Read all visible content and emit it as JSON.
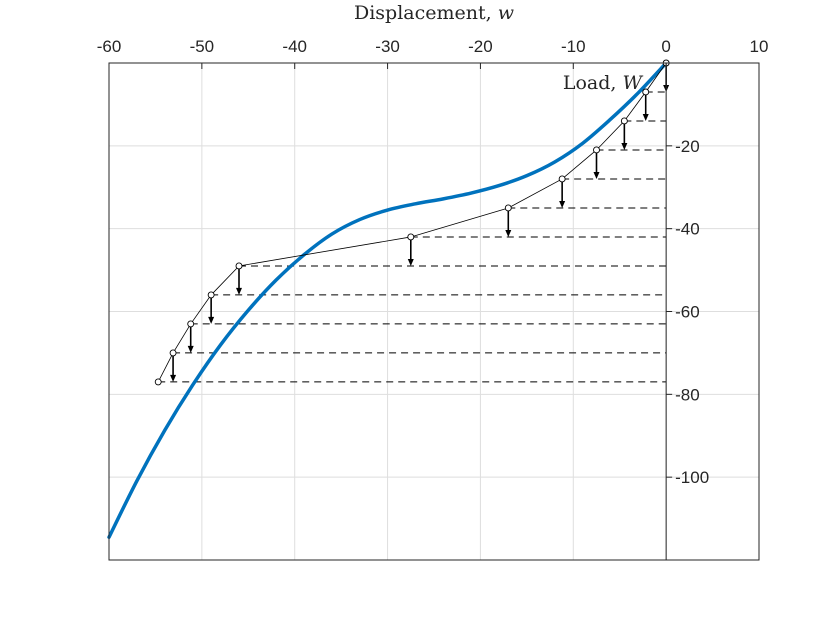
{
  "chart_data": {
    "type": "line",
    "title": "",
    "xlabel": "Displacement,",
    "xlabel_var": "w",
    "ylabel": "Load,",
    "ylabel_var": "W",
    "xlim": [
      -60,
      10
    ],
    "ylim": [
      -120,
      0
    ],
    "xticks": [
      -60,
      -50,
      -40,
      -30,
      -20,
      -10,
      0,
      10
    ],
    "yticks": [
      -20,
      -40,
      -60,
      -80,
      -100
    ],
    "xtick_labels": [
      "-60",
      "-50",
      "-40",
      "-30",
      "-20",
      "-10",
      "0",
      "10"
    ],
    "ytick_labels": [
      "-20",
      "-40",
      "-60",
      "-80",
      "-100"
    ],
    "x_axis_position": "top",
    "y_axis_position": "at x = 0",
    "grid": true,
    "legend": "none",
    "colors": {
      "curve": "#0072BD",
      "iteration": "#000000",
      "grid": "#dedede",
      "axes": "#262626"
    },
    "series": [
      {
        "style": "thick smooth line",
        "x": [
          -60,
          -57,
          -54,
          -51,
          -48,
          -45,
          -42,
          -39,
          -36,
          -33,
          -30,
          -27,
          -24,
          -21,
          -18,
          -15,
          -12,
          -9,
          -6,
          -3,
          0
        ],
        "y": [
          -114.5,
          -100.9,
          -88.7,
          -77.8,
          -68.1,
          -59.7,
          -52.4,
          -46.3,
          -41.3,
          -37.8,
          -35.5,
          -34.0,
          -32.8,
          -31.4,
          -29.6,
          -27.2,
          -23.9,
          -19.4,
          -13.6,
          -7.2,
          0
        ]
      },
      {
        "style": "thin line with circle markers",
        "x": [
          0,
          -2.2,
          -4.5,
          -7.5,
          -11.2,
          -17,
          -27.5,
          -46,
          -49,
          -51.2,
          -53.1,
          -54.7
        ],
        "y": [
          0,
          -7,
          -14,
          -21,
          -28,
          -35,
          -42,
          -49,
          -56,
          -63,
          -70,
          -77
        ]
      }
    ],
    "load_levels": [
      -7,
      -14,
      -21,
      -28,
      -35,
      -42,
      -49,
      -56,
      -63,
      -70,
      -77
    ],
    "step_arrows": [
      {
        "x": 0,
        "from": 0,
        "to": -7
      },
      {
        "x": -2.2,
        "from": -7,
        "to": -14
      },
      {
        "x": -4.5,
        "from": -14,
        "to": -21
      },
      {
        "x": -7.5,
        "from": -21,
        "to": -28
      },
      {
        "x": -11.2,
        "from": -28,
        "to": -35
      },
      {
        "x": -17,
        "from": -35,
        "to": -42
      },
      {
        "x": -27.5,
        "from": -42,
        "to": -49
      },
      {
        "x": -46,
        "from": -49,
        "to": -56
      },
      {
        "x": -49,
        "from": -56,
        "to": -63
      },
      {
        "x": -51.2,
        "from": -63,
        "to": -70
      },
      {
        "x": -53.1,
        "from": -70,
        "to": -77
      }
    ]
  }
}
